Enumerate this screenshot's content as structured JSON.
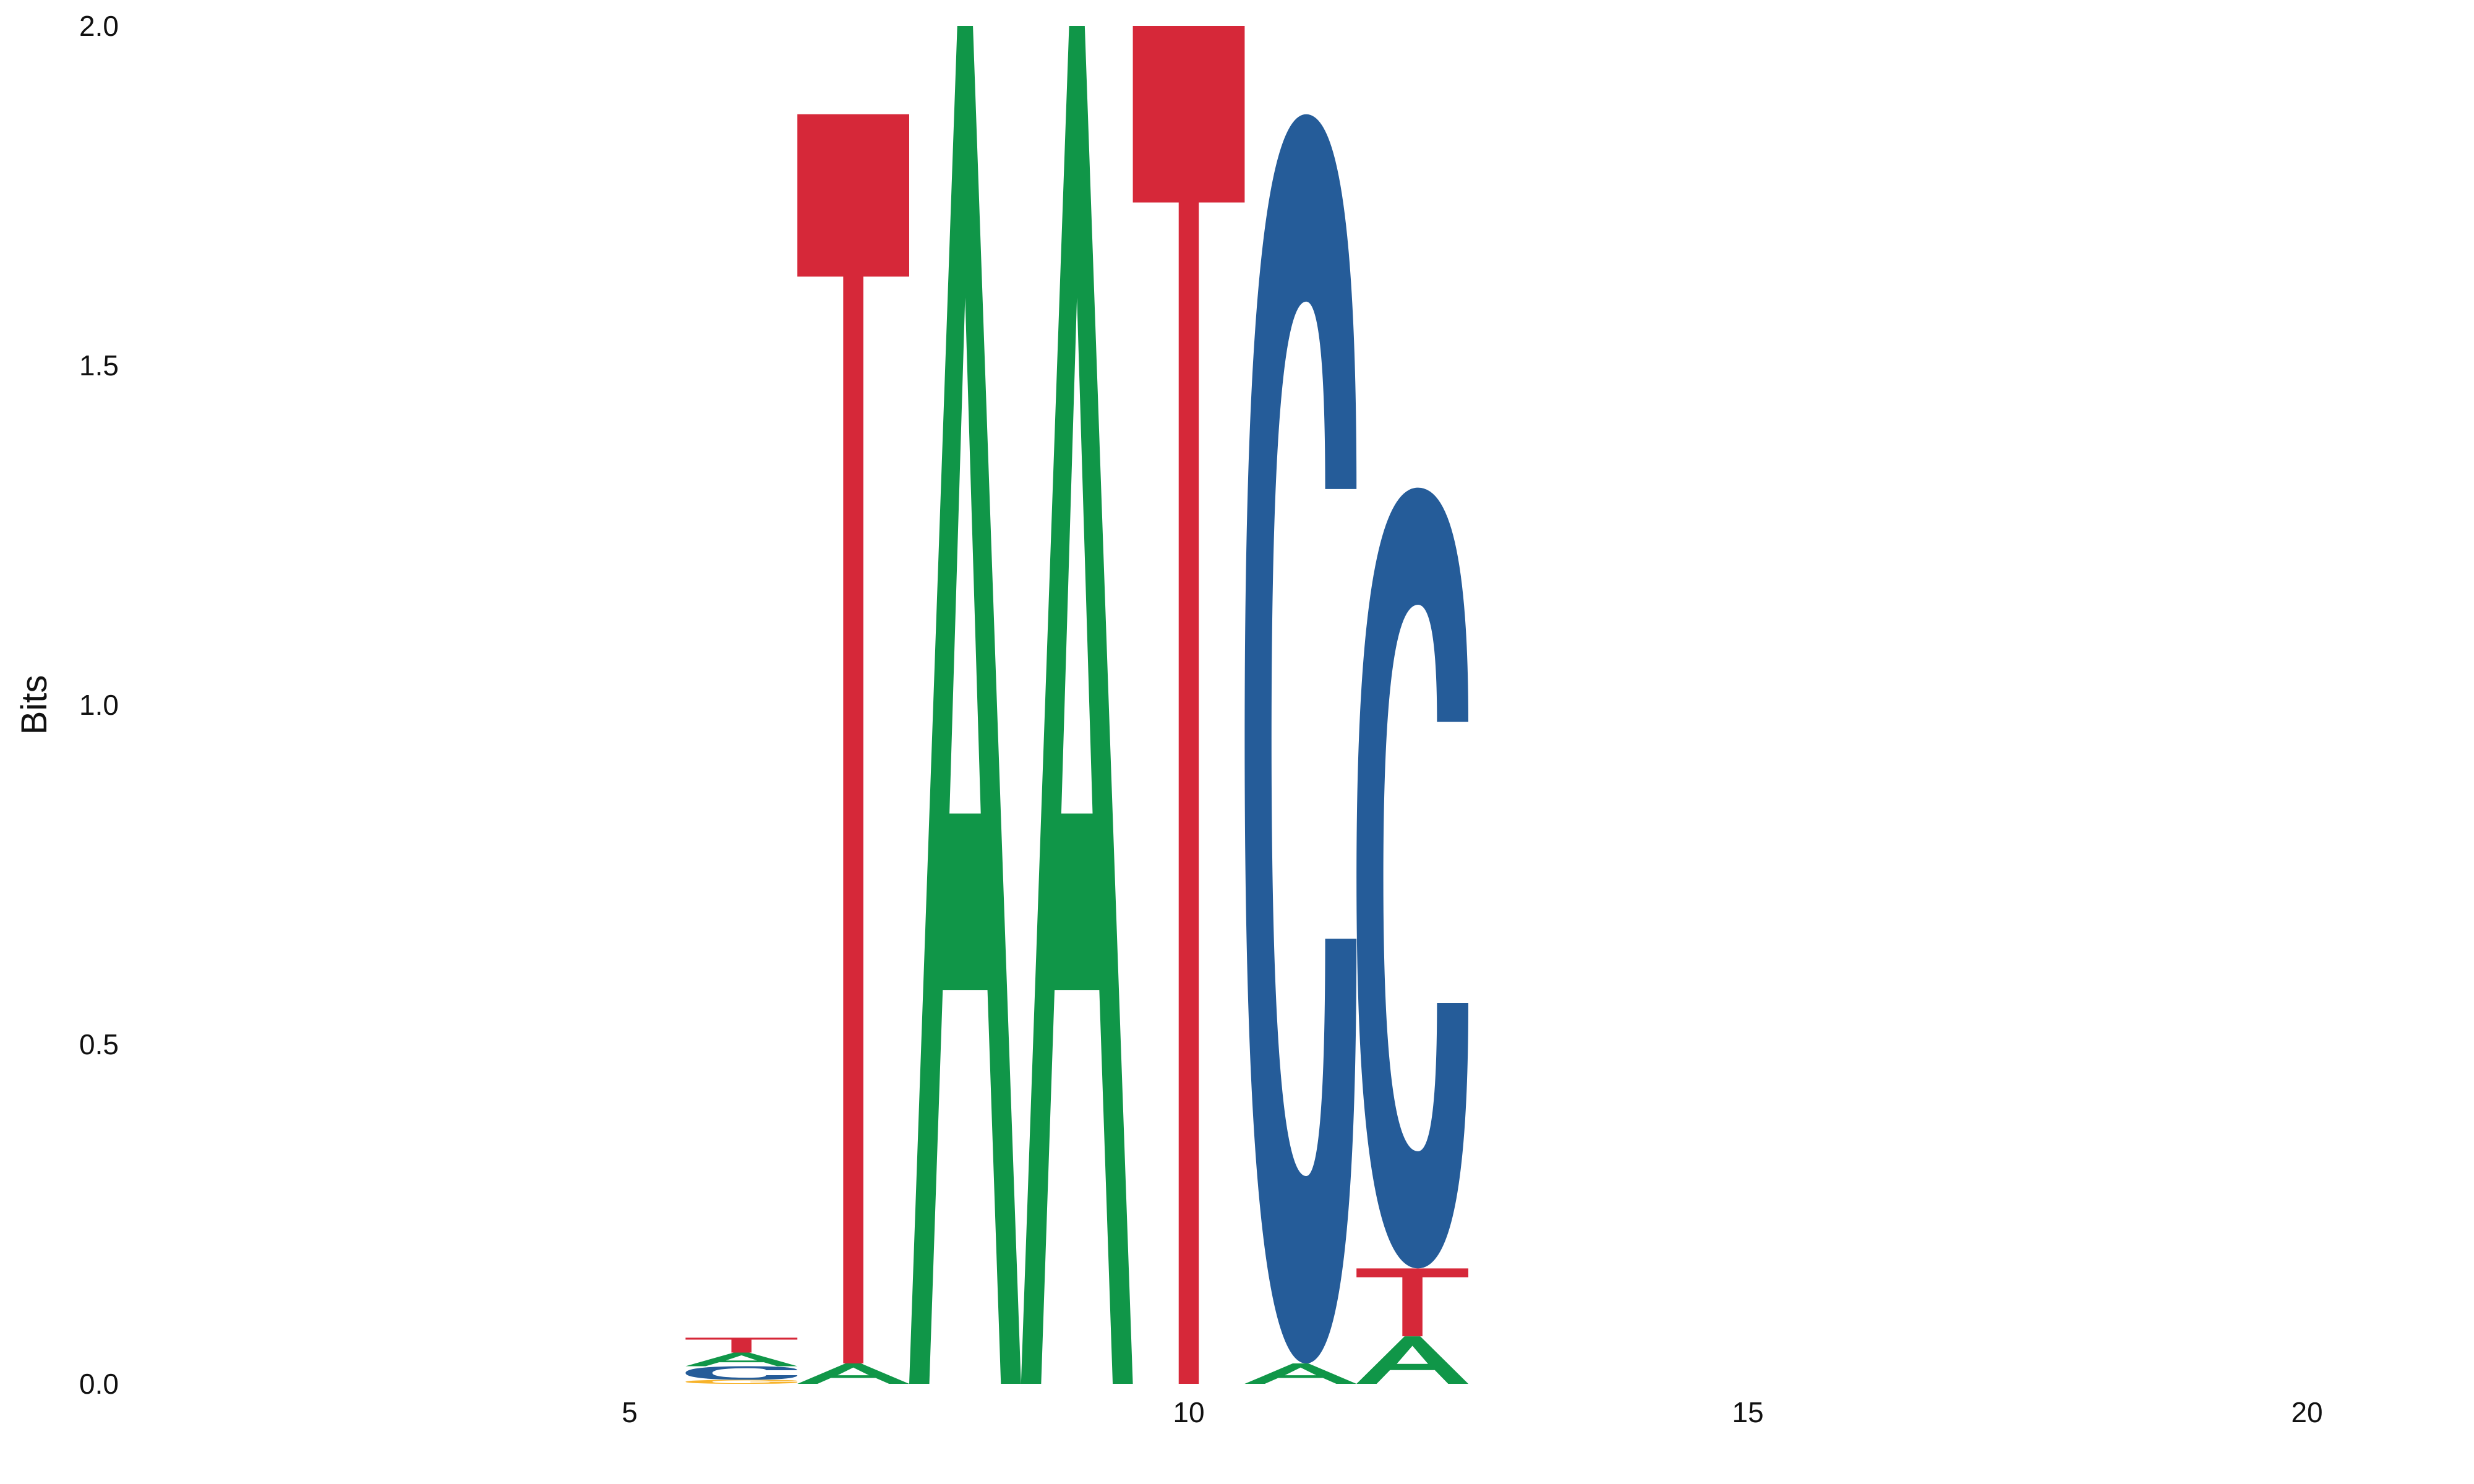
{
  "chart_data": {
    "type": "sequence-logo",
    "ylabel": "Bits",
    "ylim": [
      0,
      2.0
    ],
    "xlim": [
      0.5,
      21.5
    ],
    "y_ticks": [
      {
        "value": 0.0,
        "label": "0.0"
      },
      {
        "value": 0.5,
        "label": "0.5"
      },
      {
        "value": 1.0,
        "label": "1.0"
      },
      {
        "value": 1.5,
        "label": "1.5"
      },
      {
        "value": 2.0,
        "label": "2.0"
      }
    ],
    "x_ticks": [
      {
        "value": 5,
        "label": "5"
      },
      {
        "value": 10,
        "label": "10"
      },
      {
        "value": 15,
        "label": "15"
      },
      {
        "value": 20,
        "label": "20"
      }
    ],
    "grid": false,
    "colors": {
      "A": "#109648",
      "C": "#255c99",
      "G": "#f7b32b",
      "T": "#d62839"
    },
    "positions": [
      {
        "position": 6,
        "letters": [
          {
            "base": "G",
            "height": 0.006
          },
          {
            "base": "C",
            "height": 0.02
          },
          {
            "base": "A",
            "height": 0.02
          },
          {
            "base": "T",
            "height": 0.022
          }
        ]
      },
      {
        "position": 7,
        "letters": [
          {
            "base": "A",
            "height": 0.03
          },
          {
            "base": "T",
            "height": 1.84
          }
        ]
      },
      {
        "position": 8,
        "letters": [
          {
            "base": "A",
            "height": 2.0
          }
        ]
      },
      {
        "position": 9,
        "letters": [
          {
            "base": "A",
            "height": 2.0
          }
        ]
      },
      {
        "position": 10,
        "letters": [
          {
            "base": "T",
            "height": 2.0
          }
        ]
      },
      {
        "position": 11,
        "letters": [
          {
            "base": "A",
            "height": 0.03
          },
          {
            "base": "C",
            "height": 1.84
          }
        ]
      },
      {
        "position": 12,
        "letters": [
          {
            "base": "A",
            "height": 0.07
          },
          {
            "base": "T",
            "height": 0.1
          },
          {
            "base": "C",
            "height": 1.15
          }
        ]
      }
    ]
  }
}
